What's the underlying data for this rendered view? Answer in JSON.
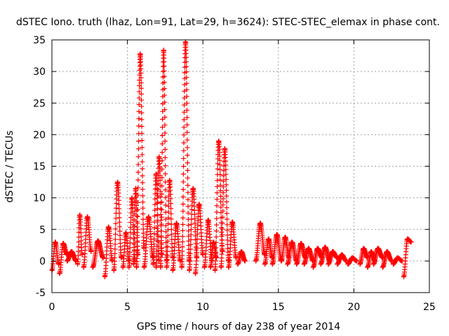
{
  "chart_data": {
    "type": "scatter",
    "title": "dSTEC Iono. truth (lhaz, Lon=91, Lat=29, h=3624): STEC-STEC_elemax in phase cont.",
    "xlabel": "GPS time / hours of day 238 of year 2014",
    "ylabel": "dSTEC  / TECUs",
    "xlim": [
      0,
      25
    ],
    "ylim": [
      -5,
      35
    ],
    "x_ticks": [
      0,
      5,
      10,
      15,
      20,
      25
    ],
    "y_ticks": [
      -5,
      0,
      5,
      10,
      15,
      20,
      25,
      30,
      35
    ],
    "grid": true,
    "marker": "+",
    "color": "#ff0000",
    "arcs": [
      {
        "start": 0.0,
        "end": 0.45,
        "y0": -1.5,
        "peak": 3.0,
        "y1": -0.5
      },
      {
        "start": 0.5,
        "end": 1.0,
        "y0": -2.0,
        "peak": 2.8,
        "y1": 1.0
      },
      {
        "start": 1.0,
        "end": 1.6,
        "y0": 0.0,
        "peak": 1.5,
        "y1": 0.0
      },
      {
        "start": 1.7,
        "end": 2.0,
        "y0": -0.5,
        "peak": 7.3,
        "y1": 1.0
      },
      {
        "start": 2.1,
        "end": 2.6,
        "y0": -1.0,
        "peak": 7.0,
        "y1": 1.5
      },
      {
        "start": 2.7,
        "end": 3.4,
        "y0": -1.0,
        "peak": 3.2,
        "y1": 0.5
      },
      {
        "start": 3.5,
        "end": 4.0,
        "y0": -2.5,
        "peak": 5.4,
        "y1": 0.0
      },
      {
        "start": 4.1,
        "end": 4.6,
        "y0": -1.5,
        "peak": 12.5,
        "y1": 0.5
      },
      {
        "start": 4.7,
        "end": 5.1,
        "y0": -1.0,
        "peak": 4.5,
        "y1": 0.0
      },
      {
        "start": 5.1,
        "end": 5.5,
        "y0": -1.0,
        "peak": 10.0,
        "y1": 0.0
      },
      {
        "start": 5.4,
        "end": 5.7,
        "y0": -0.5,
        "peak": 11.5,
        "y1": 1.0
      },
      {
        "start": 5.6,
        "end": 6.1,
        "y0": -1.0,
        "peak": 32.8,
        "y1": 2.0
      },
      {
        "start": 6.1,
        "end": 6.7,
        "y0": -1.0,
        "peak": 7.0,
        "y1": 0.5
      },
      {
        "start": 6.7,
        "end": 7.1,
        "y0": -0.5,
        "peak": 13.8,
        "y1": 0.0
      },
      {
        "start": 6.9,
        "end": 7.3,
        "y0": -1.0,
        "peak": 16.5,
        "y1": 1.0
      },
      {
        "start": 7.2,
        "end": 7.6,
        "y0": -1.0,
        "peak": 33.4,
        "y1": 0.0
      },
      {
        "start": 7.6,
        "end": 8.0,
        "y0": -1.0,
        "peak": 12.8,
        "y1": 0.5
      },
      {
        "start": 8.0,
        "end": 8.5,
        "y0": -1.5,
        "peak": 6.0,
        "y1": 0.0
      },
      {
        "start": 8.6,
        "end": 9.1,
        "y0": -1.0,
        "peak": 34.7,
        "y1": 0.0
      },
      {
        "start": 9.1,
        "end": 9.6,
        "y0": -1.5,
        "peak": 11.5,
        "y1": 0.5
      },
      {
        "start": 9.5,
        "end": 10.0,
        "y0": -2.0,
        "peak": 9.0,
        "y1": 1.0
      },
      {
        "start": 10.1,
        "end": 10.6,
        "y0": -1.0,
        "peak": 6.5,
        "y1": 0.0
      },
      {
        "start": 10.5,
        "end": 10.9,
        "y0": -1.0,
        "peak": 3.0,
        "y1": 0.5
      },
      {
        "start": 10.8,
        "end": 11.3,
        "y0": -1.5,
        "peak": 19.0,
        "y1": 1.5
      },
      {
        "start": 11.2,
        "end": 11.7,
        "y0": -1.0,
        "peak": 17.8,
        "y1": 0.0
      },
      {
        "start": 11.7,
        "end": 12.2,
        "y0": -1.0,
        "peak": 6.2,
        "y1": 0.5
      },
      {
        "start": 12.3,
        "end": 12.8,
        "y0": -0.5,
        "peak": 1.5,
        "y1": 0.0
      },
      {
        "start": 13.5,
        "end": 14.1,
        "y0": 0.0,
        "peak": 6.0,
        "y1": 1.0
      },
      {
        "start": 14.1,
        "end": 14.6,
        "y0": -0.5,
        "peak": 3.5,
        "y1": 0.5
      },
      {
        "start": 14.6,
        "end": 15.2,
        "y0": -0.5,
        "peak": 4.2,
        "y1": 0.0
      },
      {
        "start": 15.2,
        "end": 15.7,
        "y0": 0.0,
        "peak": 3.8,
        "y1": 0.5
      },
      {
        "start": 15.6,
        "end": 16.2,
        "y0": -0.5,
        "peak": 3.0,
        "y1": 0.0
      },
      {
        "start": 16.2,
        "end": 16.8,
        "y0": -0.5,
        "peak": 2.8,
        "y1": 0.5
      },
      {
        "start": 16.7,
        "end": 17.3,
        "y0": -0.5,
        "peak": 2.0,
        "y1": 0.0
      },
      {
        "start": 17.3,
        "end": 17.9,
        "y0": -1.0,
        "peak": 2.0,
        "y1": 0.5
      },
      {
        "start": 17.8,
        "end": 18.4,
        "y0": -0.5,
        "peak": 2.2,
        "y1": 0.0
      },
      {
        "start": 18.3,
        "end": 18.9,
        "y0": -0.5,
        "peak": 1.5,
        "y1": 0.5
      },
      {
        "start": 18.9,
        "end": 19.5,
        "y0": -0.5,
        "peak": 1.0,
        "y1": 0.0
      },
      {
        "start": 19.6,
        "end": 20.2,
        "y0": -0.5,
        "peak": 0.5,
        "y1": 0.0
      },
      {
        "start": 20.4,
        "end": 20.9,
        "y0": -0.5,
        "peak": 2.0,
        "y1": 0.5
      },
      {
        "start": 20.9,
        "end": 21.4,
        "y0": -1.0,
        "peak": 1.5,
        "y1": 0.0
      },
      {
        "start": 21.3,
        "end": 21.9,
        "y0": -0.5,
        "peak": 2.0,
        "y1": 0.5
      },
      {
        "start": 21.9,
        "end": 22.5,
        "y0": -1.0,
        "peak": 1.5,
        "y1": 0.0
      },
      {
        "start": 22.6,
        "end": 23.2,
        "y0": -0.5,
        "peak": 0.5,
        "y1": 0.0
      },
      {
        "start": 23.3,
        "end": 23.8,
        "y0": -2.5,
        "peak": 3.5,
        "y1": 3.0
      }
    ]
  }
}
